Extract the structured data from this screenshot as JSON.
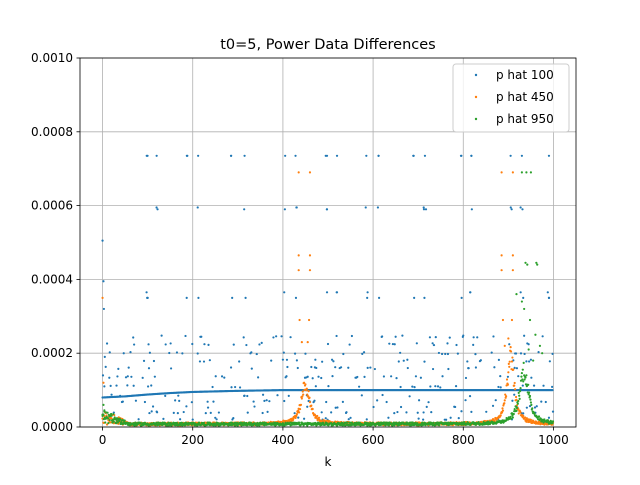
{
  "chart_data": {
    "type": "scatter",
    "title": "t0=5, Power Data Differences",
    "xlabel": "k",
    "ylabel": "",
    "xlim": [
      -50,
      1050
    ],
    "ylim": [
      0,
      0.001
    ],
    "x_ticks": [
      0,
      200,
      400,
      600,
      800,
      1000
    ],
    "x_tick_labels": [
      "0",
      "200",
      "400",
      "600",
      "800",
      "1000"
    ],
    "y_ticks": [
      0,
      0.0002,
      0.0004,
      0.0006,
      0.0008,
      0.001
    ],
    "y_tick_labels": [
      "0.0000",
      "0.0002",
      "0.0004",
      "0.0006",
      "0.0008",
      "0.0010"
    ],
    "grid": true,
    "legend_position": "top-right",
    "k_range": [
      0,
      999
    ],
    "series": [
      {
        "name": "p hat 100",
        "color": "#1f77b4",
        "baseline_trend": {
          "k": [
            0,
            50,
            100,
            150,
            200,
            300,
            400,
            1000
          ],
          "y": [
            8e-05,
            8.3e-05,
            8.8e-05,
            9.2e-05,
            9.5e-05,
            9.8e-05,
            0.0001,
            0.0001
          ]
        },
        "scatter_levels": [
          2.25e-05,
          4e-05,
          5.5e-05,
          7e-05,
          8.5e-05,
          0.00011,
          0.000135,
          0.00016,
          0.00018,
          0.0002,
          0.000225,
          0.000245
        ],
        "outlier_levels": [
          0.00035,
          0.000365,
          0.00059,
          0.000595,
          0.000735
        ],
        "start_points": [
          [
            0,
            0.000505
          ],
          [
            2,
            0.000395
          ],
          [
            3,
            0.00032
          ],
          [
            5,
            0.00019
          ],
          [
            1,
            0.00014
          ],
          [
            4,
            0.00011
          ]
        ],
        "peak_positions": [
          98,
          120,
          188,
          212,
          285,
          315,
          405,
          428,
          495,
          520,
          585,
          612,
          690,
          715,
          795,
          818,
          905,
          930,
          990
        ]
      },
      {
        "name": "p hat 450",
        "color": "#ff7f0e",
        "start_points": [
          [
            0,
            0.00035
          ],
          [
            2,
            0.00012
          ]
        ],
        "resonances": [
          {
            "k": 450,
            "width": 26,
            "peak": 0.00012
          },
          {
            "k": 905,
            "width": 22,
            "peak": 0.0002
          }
        ],
        "outliers": [
          [
            435,
            0.00069
          ],
          [
            460,
            0.00069
          ],
          [
            435,
            0.000465
          ],
          [
            460,
            0.000465
          ],
          [
            435,
            0.000425
          ],
          [
            460,
            0.000425
          ],
          [
            437,
            0.00029
          ],
          [
            458,
            0.00029
          ],
          [
            442,
            0.00023
          ],
          [
            455,
            0.00023
          ],
          [
            885,
            0.00069
          ],
          [
            910,
            0.00069
          ],
          [
            885,
            0.000465
          ],
          [
            910,
            0.000465
          ],
          [
            885,
            0.000425
          ],
          [
            910,
            0.000425
          ],
          [
            888,
            0.00029
          ],
          [
            908,
            0.00029
          ],
          [
            892,
            0.00022
          ],
          [
            900,
            0.00024
          ]
        ]
      },
      {
        "name": "p hat 950",
        "color": "#2ca02c",
        "start_points": [
          [
            0,
            3e-05
          ],
          [
            2,
            6e-05
          ],
          [
            4,
            4.5e-05
          ]
        ],
        "resonances": [
          {
            "k": 935,
            "width": 28,
            "peak": 0.00016
          }
        ],
        "outliers": [
          [
            930,
            0.00069
          ],
          [
            950,
            0.00069
          ],
          [
            940,
            0.00069
          ],
          [
            938,
            0.000445
          ],
          [
            962,
            0.000445
          ],
          [
            942,
            0.00044
          ],
          [
            964,
            0.00044
          ],
          [
            918,
            0.00036
          ],
          [
            930,
            0.00034
          ],
          [
            935,
            0.00032
          ],
          [
            948,
            0.00029
          ],
          [
            960,
            0.00025
          ],
          [
            970,
            0.00022
          ],
          [
            975,
            0.0002
          ],
          [
            945,
            0.00021
          ],
          [
            955,
            0.00018
          ]
        ]
      }
    ]
  }
}
